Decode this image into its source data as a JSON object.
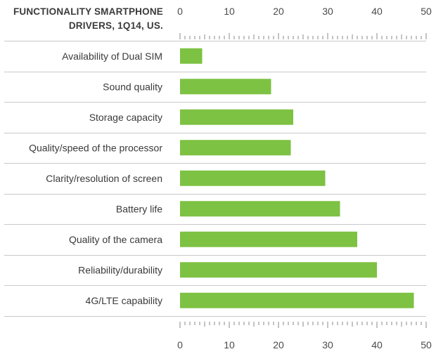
{
  "chart_data": {
    "type": "bar",
    "orientation": "horizontal",
    "title_lines": [
      "FUNCTIONALITY SMARTPHONE",
      "DRIVERS, 1Q14, US."
    ],
    "categories": [
      "Availability of Dual SIM",
      "Sound quality",
      "Storage capacity",
      "Quality/speed of the processor",
      "Clarity/resolution of screen",
      "Battery life",
      "Quality of the camera",
      "Reliability/durability",
      "4G/LTE capability"
    ],
    "values": [
      4.5,
      18.5,
      23,
      22.5,
      29.5,
      32.5,
      36,
      40,
      47.5
    ],
    "xlim": [
      0,
      50
    ],
    "major_ticks": [
      0,
      10,
      20,
      30,
      40,
      50
    ],
    "xlabel": "",
    "ylabel": "",
    "bar_color": "#7dc242",
    "axis_position": "top and bottom",
    "grid": false
  }
}
